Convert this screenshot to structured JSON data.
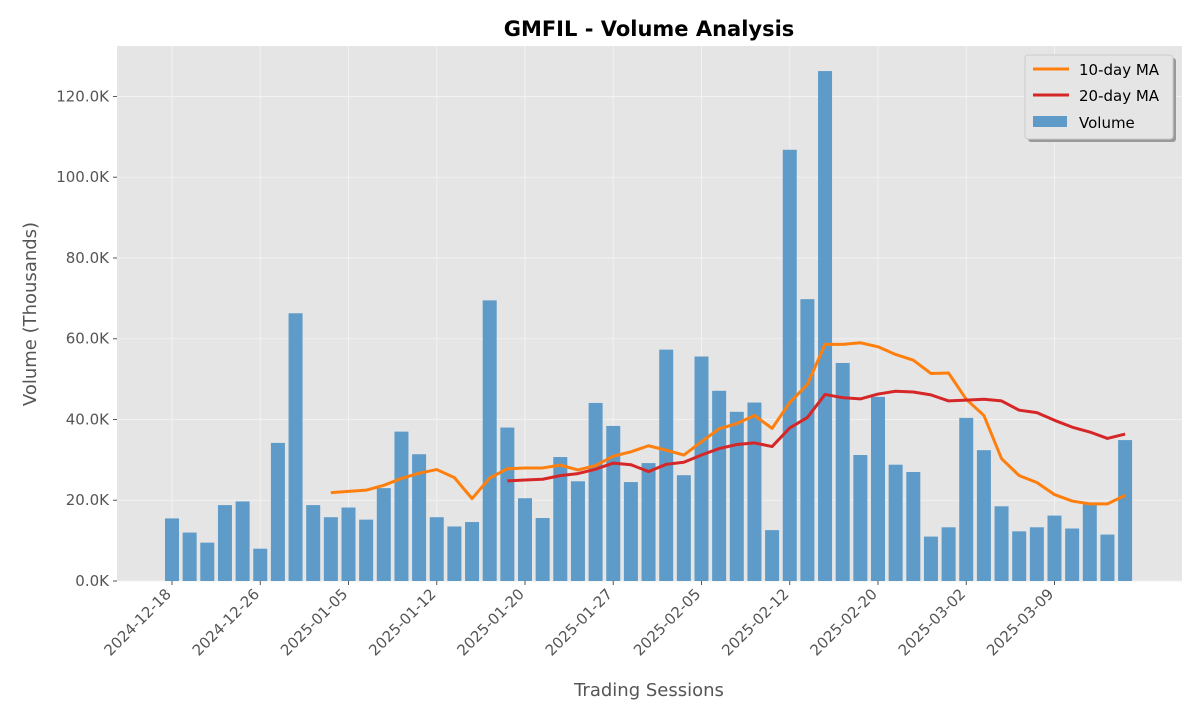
{
  "chart_data": {
    "type": "bar",
    "title": "GMFIL - Volume Analysis",
    "xlabel": "Trading Sessions",
    "ylabel": "Volume (Thousands)",
    "ylim": [
      0,
      132500
    ],
    "y_ticks": [
      0,
      20000,
      40000,
      60000,
      80000,
      100000,
      120000
    ],
    "y_tick_labels": [
      "0.0K",
      "20.0K",
      "40.0K",
      "60.0K",
      "80.0K",
      "100.0K",
      "120.0K"
    ],
    "x_tick_labels": [
      "2024-12-18",
      "2024-12-26",
      "2025-01-05",
      "2025-01-12",
      "2025-01-20",
      "2025-01-27",
      "2025-02-05",
      "2025-02-12",
      "2025-02-20",
      "2025-03-02",
      "2025-03-09"
    ],
    "x_tick_sessions": [
      0,
      5,
      10,
      15,
      20,
      25,
      30,
      35,
      40,
      45,
      50
    ],
    "grid": true,
    "legend_position": "top-right",
    "colors": {
      "volume": "#5f9bc8",
      "ma10": "#ff7f0e",
      "ma20": "#d62728",
      "plot_bg": "#e5e5e5",
      "grid": "#f2f2f2"
    },
    "series": [
      {
        "name": "Volume",
        "values": [
          15500,
          12000,
          9500,
          18800,
          19700,
          8000,
          34200,
          66300,
          18800,
          15800,
          18200,
          15200,
          23000,
          37000,
          31400,
          15800,
          13500,
          14600,
          69500,
          38000,
          20500,
          15600,
          30700,
          24700,
          44100,
          38400,
          24500,
          29200,
          57300,
          26200,
          55600,
          47100,
          41900,
          44200,
          12600,
          106800,
          69800,
          126300,
          54000,
          31200,
          45600,
          28800,
          27000,
          11000,
          13300,
          40400,
          32400,
          18500,
          12300,
          13300,
          16200,
          13000,
          19000,
          11500,
          34900
        ]
      },
      {
        "name": "10-day MA",
        "values": [
          null,
          null,
          null,
          null,
          null,
          null,
          null,
          null,
          null,
          21900,
          22200,
          22500,
          23700,
          25400,
          26700,
          27600,
          25600,
          20400,
          25500,
          27800,
          28000,
          28000,
          28700,
          27500,
          28600,
          30900,
          32000,
          33500,
          32400,
          31200,
          34500,
          37700,
          39000,
          41000,
          37800,
          44200,
          48700,
          58600,
          58600,
          59000,
          58000,
          56100,
          54700,
          51400,
          51500,
          45000,
          41000,
          30300,
          26100,
          24400,
          21400,
          19800,
          19100,
          19100,
          21200
        ]
      },
      {
        "name": "20-day MA",
        "values": [
          null,
          null,
          null,
          null,
          null,
          null,
          null,
          null,
          null,
          null,
          null,
          null,
          null,
          null,
          null,
          null,
          null,
          null,
          null,
          24800,
          25000,
          25200,
          26100,
          26600,
          27700,
          29200,
          28800,
          27100,
          28900,
          29400,
          31200,
          32800,
          33800,
          34200,
          33300,
          37900,
          40500,
          46200,
          45400,
          45100,
          46300,
          47000,
          46800,
          46100,
          44600,
          44800,
          45000,
          44600,
          42300,
          41700,
          39800,
          38100,
          36900,
          35300,
          36400
        ]
      }
    ]
  }
}
